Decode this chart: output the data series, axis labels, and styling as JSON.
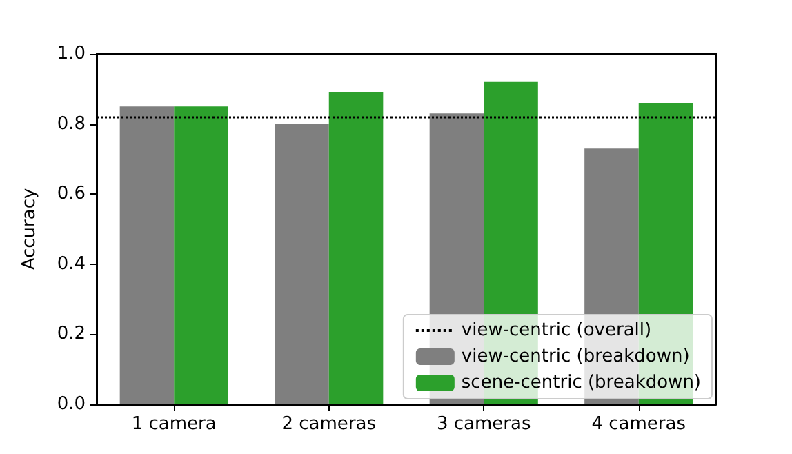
{
  "chart_data": {
    "type": "bar",
    "ylabel": "Accuracy",
    "categories": [
      "1 camera",
      "2 cameras",
      "3 cameras",
      "4 cameras"
    ],
    "series": [
      {
        "name": "view-centric (breakdown)",
        "color": "#7f7f7f",
        "values": [
          0.85,
          0.8,
          0.83,
          0.73
        ]
      },
      {
        "name": "scene-centric (breakdown)",
        "color": "#2ca02c",
        "values": [
          0.85,
          0.89,
          0.92,
          0.86
        ]
      }
    ],
    "ref_lines": [
      {
        "axis": "y",
        "value": 0.82,
        "label": "view-centric (overall)",
        "color": "#000000",
        "line_style": "dotted"
      }
    ],
    "ylim": [
      0,
      1
    ],
    "yticks": [
      {
        "value": 0,
        "label": "0.0"
      },
      {
        "value": 0.2,
        "label": "0.2"
      },
      {
        "value": 0.4,
        "label": "0.4"
      },
      {
        "value": 0.6,
        "label": "0.6"
      },
      {
        "value": 0.8,
        "label": "0.8"
      },
      {
        "value": 1,
        "label": "1.0"
      }
    ],
    "grid": false,
    "legend": "bottom right"
  }
}
